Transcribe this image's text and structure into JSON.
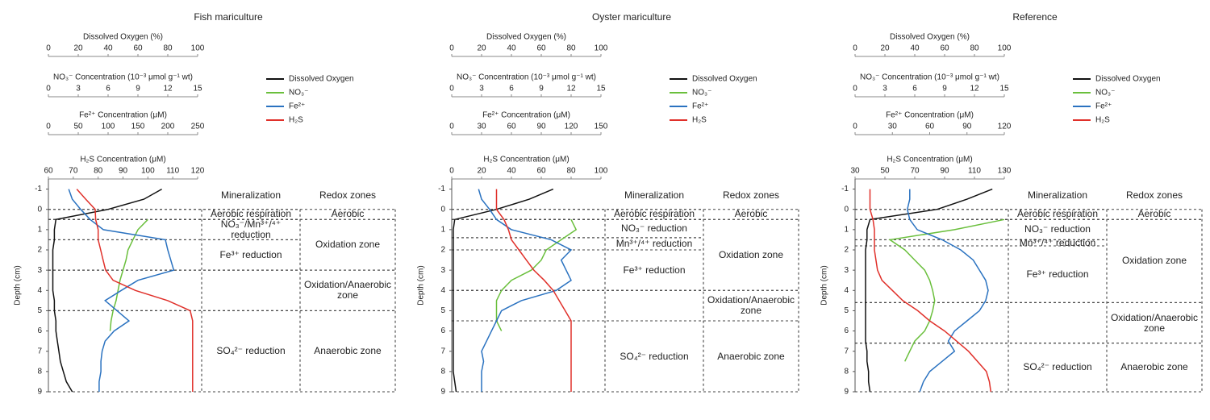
{
  "chart_data": [
    {
      "type": "profile",
      "title": "Fish mariculture",
      "x_axes": [
        {
          "label": "Dissolved Oxygen (%)",
          "xlim": [
            0,
            100
          ],
          "xticks": [
            0,
            20,
            40,
            60,
            80,
            100
          ]
        },
        {
          "label": "NO₃⁻ Concentration (10⁻³ μmol g⁻¹ wt)",
          "xlim": [
            0,
            15
          ],
          "xticks": [
            0,
            3,
            6,
            9,
            12,
            15
          ]
        },
        {
          "label": "Fe²⁺ Concentration (μM)",
          "xlim": [
            0,
            250
          ],
          "xticks": [
            0,
            50,
            100,
            150,
            200,
            250
          ]
        },
        {
          "label": "H₂S Concentration (μM)",
          "xlim": [
            60,
            120
          ],
          "xticks": [
            60,
            70,
            80,
            90,
            100,
            110,
            120
          ]
        }
      ],
      "ylabel": "Depth (cm)",
      "ylim": [
        -1.5,
        9
      ],
      "yticks": [
        -1,
        0,
        1,
        2,
        3,
        4,
        5,
        6,
        7,
        8,
        9
      ],
      "depth": [
        -1,
        -0.5,
        0,
        0.5,
        1,
        1.5,
        2,
        2.5,
        3,
        3.5,
        4,
        4.5,
        5,
        5.5,
        6,
        6.5,
        7,
        7.5,
        8,
        8.5,
        9
      ],
      "series": [
        {
          "name": "Dissolved Oxygen",
          "color": "#111111",
          "axis": 0,
          "values": [
            76,
            64,
            40,
            5,
            4,
            4,
            3,
            3,
            3,
            3,
            3,
            4,
            4,
            5,
            5,
            6,
            7,
            8,
            10,
            12,
            16
          ]
        },
        {
          "name": "NO₃⁻",
          "color": "#6abf3c",
          "axis": 1,
          "values": [
            null,
            null,
            null,
            10,
            9,
            8.5,
            8,
            7.8,
            7.5,
            7.2,
            7,
            6.8,
            6.5,
            6.3,
            6.2,
            null,
            null,
            null,
            null,
            null,
            null
          ]
        },
        {
          "name": "Fe²⁺",
          "color": "#2a72c0",
          "axis": 2,
          "values": [
            34,
            40,
            54,
            70,
            92,
            196,
            200,
            205,
            210,
            150,
            122,
            95,
            115,
            135,
            110,
            95,
            90,
            88,
            88,
            85,
            85
          ]
        },
        {
          "name": "H₂S",
          "color": "#e0302a",
          "axis": 3,
          "values": [
            71.4,
            75,
            78.8,
            79,
            80,
            80,
            81,
            82,
            83,
            86,
            95,
            108,
            117,
            118,
            118,
            118,
            118,
            118,
            118,
            118,
            118
          ]
        }
      ],
      "zones": {
        "mineralization": {
          "title": "Mineralization",
          "items": [
            {
              "label": "Aerobic respiration",
              "from": 0,
              "to": 0.5
            },
            {
              "label": "NO₃⁻/Mn³⁺/⁴⁺ reduction",
              "from": 0.5,
              "to": 1.5
            },
            {
              "label": "Fe³⁺ reduction",
              "from": 1.5,
              "to": 3
            },
            {
              "label": "SO₄²⁻ reduction",
              "from": 5,
              "to": 9
            }
          ]
        },
        "redox": {
          "title": "Redox zones",
          "items": [
            {
              "label": "Aerobic",
              "from": 0,
              "to": 0.5
            },
            {
              "label": "Oxidation zone",
              "from": 0.5,
              "to": 3
            },
            {
              "label": "Oxidation/Anaerobic zone",
              "from": 3,
              "to": 5
            },
            {
              "label": "Anaerobic zone",
              "from": 5,
              "to": 9
            }
          ]
        }
      }
    },
    {
      "type": "profile",
      "title": "Oyster mariculture",
      "x_axes": [
        {
          "label": "Dissolved Oxygen (%)",
          "xlim": [
            0,
            100
          ],
          "xticks": [
            0,
            20,
            40,
            60,
            80,
            100
          ]
        },
        {
          "label": "NO₃⁻ Concentration (10⁻³ μmol g⁻¹ wt)",
          "xlim": [
            0,
            15
          ],
          "xticks": [
            0,
            3,
            6,
            9,
            12,
            15
          ]
        },
        {
          "label": "Fe²⁺ Concentration (μM)",
          "xlim": [
            0,
            150
          ],
          "xticks": [
            0,
            30,
            60,
            90,
            120,
            150
          ]
        },
        {
          "label": "H₂S Concentration (μM)",
          "xlim": [
            0,
            100
          ],
          "xticks": [
            0,
            20,
            40,
            60,
            80,
            100
          ]
        }
      ],
      "ylabel": "Depth (cm)",
      "ylim": [
        -1.5,
        9
      ],
      "yticks": [
        -1,
        0,
        1,
        2,
        3,
        4,
        5,
        6,
        7,
        8,
        9
      ],
      "depth": [
        -1,
        -0.5,
        0,
        0.5,
        1,
        1.5,
        2,
        2.5,
        3,
        3.5,
        4,
        4.5,
        5,
        5.5,
        6,
        6.5,
        7,
        7.5,
        8,
        8.5,
        9
      ],
      "series": [
        {
          "name": "Dissolved Oxygen",
          "color": "#111111",
          "axis": 0,
          "values": [
            68,
            52,
            30,
            2,
            1,
            1,
            1,
            1,
            1,
            1,
            1,
            1,
            1,
            1,
            1,
            1,
            1,
            1,
            1,
            2,
            3
          ]
        },
        {
          "name": "NO₃⁻",
          "color": "#6abf3c",
          "axis": 1,
          "values": [
            null,
            null,
            null,
            12,
            12.5,
            11,
            9.5,
            9,
            8,
            6,
            5,
            4.5,
            4.5,
            4.5,
            5,
            null,
            null,
            null,
            null,
            null,
            null
          ]
        },
        {
          "name": "Fe²⁺",
          "color": "#2a72c0",
          "axis": 2,
          "values": [
            27,
            30,
            38,
            45,
            60,
            100,
            120,
            110,
            115,
            120,
            105,
            70,
            50,
            45,
            40,
            35,
            30,
            32,
            30,
            30,
            30
          ]
        },
        {
          "name": "H₂S",
          "color": "#e0302a",
          "axis": 3,
          "values": [
            30,
            30,
            30,
            35,
            38,
            40,
            45,
            50,
            55,
            62,
            68,
            72,
            76,
            80,
            80,
            80,
            80,
            80,
            80,
            80,
            80
          ]
        }
      ],
      "zones": {
        "mineralization": {
          "title": "Mineralization",
          "items": [
            {
              "label": "Aerobic respiration",
              "from": 0,
              "to": 0.5
            },
            {
              "label": "NO₃⁻ reduction",
              "from": 0.5,
              "to": 1.4
            },
            {
              "label": "Mn³⁺/⁴⁺ reduction",
              "from": 1.4,
              "to": 2
            },
            {
              "label": "Fe³⁺ reduction",
              "from": 2,
              "to": 4
            },
            {
              "label": "SO₄²⁻ reduction",
              "from": 5.5,
              "to": 9
            }
          ]
        },
        "redox": {
          "title": "Redox zones",
          "items": [
            {
              "label": "Aerobic",
              "from": 0,
              "to": 0.5
            },
            {
              "label": "Oxidation zone",
              "from": 0.5,
              "to": 4
            },
            {
              "label": "Oxidation/Anaerobic zone",
              "from": 4,
              "to": 5.5
            },
            {
              "label": "Anaerobic zone",
              "from": 5.5,
              "to": 9
            }
          ]
        }
      }
    },
    {
      "type": "profile",
      "title": "Reference",
      "x_axes": [
        {
          "label": "Dissolved Oxygen (%)",
          "xlim": [
            0,
            100
          ],
          "xticks": [
            0,
            20,
            40,
            60,
            80,
            100
          ]
        },
        {
          "label": "NO₃⁻ Concentration (10⁻³ μmol g⁻¹ wt)",
          "xlim": [
            0,
            15
          ],
          "xticks": [
            0,
            3,
            6,
            9,
            12,
            15
          ]
        },
        {
          "label": "Fe²⁺ Concentration (μM)",
          "xlim": [
            0,
            120
          ],
          "xticks": [
            0,
            30,
            60,
            90,
            120
          ]
        },
        {
          "label": "H₂S Concentration (μM)",
          "xlim": [
            30,
            130
          ],
          "xticks": [
            30,
            50,
            70,
            90,
            110,
            130
          ]
        }
      ],
      "ylabel": "Depth (cm)",
      "ylim": [
        -1.5,
        9
      ],
      "yticks": [
        -1,
        0,
        1,
        2,
        3,
        4,
        5,
        6,
        7,
        8,
        9
      ],
      "depth": [
        -1,
        -0.5,
        0,
        0.5,
        1,
        1.5,
        2,
        2.5,
        3,
        3.5,
        4,
        4.5,
        5,
        5.5,
        6,
        6.5,
        7,
        7.5,
        8,
        8.5,
        9
      ],
      "series": [
        {
          "name": "Dissolved Oxygen",
          "color": "#111111",
          "axis": 0,
          "values": [
            92,
            75,
            55,
            10,
            8,
            8,
            7,
            7,
            7,
            7,
            7,
            7,
            7,
            7,
            7,
            7,
            8,
            8,
            9,
            9,
            10
          ]
        },
        {
          "name": "NO₃⁻",
          "color": "#6abf3c",
          "axis": 1,
          "values": [
            null,
            null,
            null,
            15,
            10,
            3.5,
            5,
            6,
            7,
            7.5,
            7.8,
            8,
            7.8,
            7.5,
            7,
            6,
            5.5,
            5,
            null,
            null,
            null
          ]
        },
        {
          "name": "Fe²⁺",
          "color": "#2a72c0",
          "axis": 2,
          "values": [
            44,
            44,
            42,
            44,
            50,
            70,
            85,
            95,
            100,
            105,
            107,
            105,
            100,
            90,
            80,
            75,
            80,
            70,
            60,
            55,
            52
          ]
        },
        {
          "name": "H₂S",
          "color": "#e0302a",
          "axis": 3,
          "values": [
            40,
            40,
            40,
            42,
            43,
            43,
            43,
            44,
            45,
            48,
            55,
            62,
            72,
            80,
            90,
            98,
            106,
            112,
            118,
            120,
            121
          ]
        }
      ],
      "zones": {
        "mineralization": {
          "title": "Mineralization",
          "items": [
            {
              "label": "Aerobic respiration",
              "from": 0,
              "to": 0.5
            },
            {
              "label": "NO₃⁻ reduction",
              "from": 0.5,
              "to": 1.5
            },
            {
              "label": "Mn³⁺/⁴⁺ reduction",
              "from": 1.5,
              "to": 1.8
            },
            {
              "label": "Fe³⁺ reduction",
              "from": 1.8,
              "to": 4.6
            },
            {
              "label": "SO₄²⁻ reduction",
              "from": 6.6,
              "to": 9
            }
          ]
        },
        "redox": {
          "title": "Redox zones",
          "items": [
            {
              "label": "Aerobic",
              "from": 0,
              "to": 0.5
            },
            {
              "label": "Oxidation zone",
              "from": 0.5,
              "to": 4.6
            },
            {
              "label": "Oxidation/Anaerobic zone",
              "from": 4.6,
              "to": 6.6
            },
            {
              "label": "Anaerobic zone",
              "from": 6.6,
              "to": 9
            }
          ]
        }
      }
    }
  ]
}
